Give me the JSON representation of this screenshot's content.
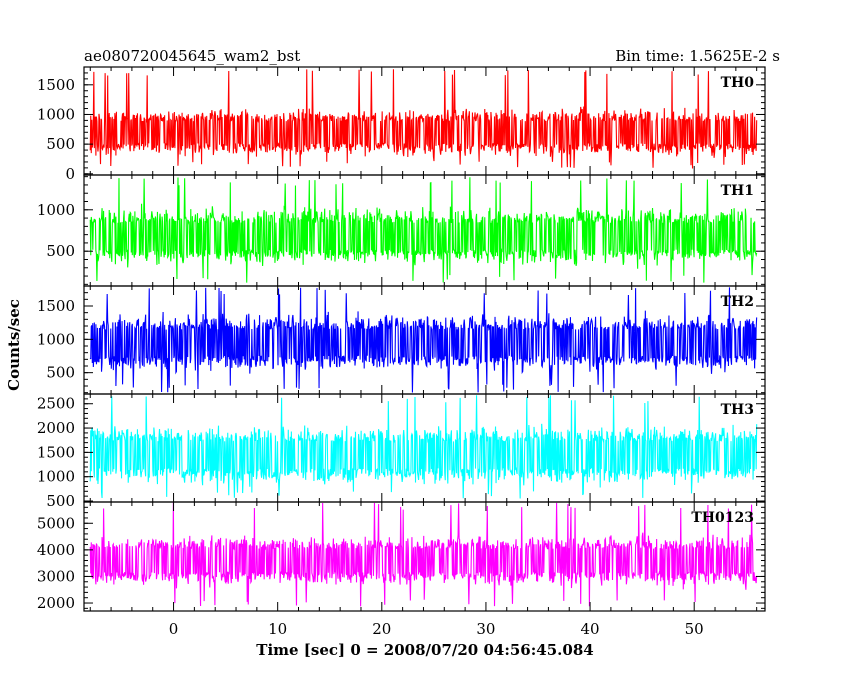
{
  "header": {
    "title": "ae080720045645_wam2_bst",
    "bin_time": "Bin time: 1.5625E-2 s"
  },
  "chart_data": {
    "type": "line",
    "title": "ae080720045645_wam2_bst",
    "xlabel": "Time [sec] 0 = 2008/07/20 04:56:45.084",
    "ylabel": "Counts/sec",
    "xlim": [
      -8.6,
      56.8
    ],
    "data_xrange": [
      -8.0,
      56.0
    ],
    "xticks": [
      0,
      10,
      20,
      30,
      40,
      50
    ],
    "xtick_labels": [
      "0",
      "10",
      "20",
      "30",
      "40",
      "50"
    ],
    "x_minor_step": 2,
    "grid": false,
    "legend": "none",
    "panels": [
      {
        "name": "TH0",
        "color": "#ff0000",
        "ylim": [
          -20,
          1800
        ],
        "yticks": [
          0,
          500,
          1000,
          1500
        ],
        "ytick_labels": [
          "0",
          "500",
          "1000",
          "1500"
        ],
        "y_minor_step": 100,
        "mean": 700,
        "band": [
          320,
          1150
        ],
        "range": [
          90,
          1780
        ]
      },
      {
        "name": "TH1",
        "color": "#00ff00",
        "ylim": [
          80,
          1420
        ],
        "yticks": [
          500,
          1000
        ],
        "ytick_labels": [
          "500",
          "1000"
        ],
        "y_minor_step": 100,
        "mean": 680,
        "band": [
          330,
          1050
        ],
        "range": [
          110,
          1400
        ]
      },
      {
        "name": "TH2",
        "color": "#0000ff",
        "ylim": [
          180,
          1800
        ],
        "yticks": [
          500,
          1000,
          1500
        ],
        "ytick_labels": [
          "500",
          "1000",
          "1500"
        ],
        "y_minor_step": 100,
        "mean": 950,
        "band": [
          530,
          1400
        ],
        "range": [
          200,
          1790
        ]
      },
      {
        "name": "TH3",
        "color": "#00ffff",
        "ylim": [
          480,
          2700
        ],
        "yticks": [
          500,
          1000,
          1500,
          2000,
          2500
        ],
        "ytick_labels": [
          "500",
          "1000",
          "1500",
          "2000",
          "2500"
        ],
        "y_minor_step": 100,
        "mean": 1450,
        "band": [
          920,
          2150
        ],
        "range": [
          520,
          2690
        ]
      },
      {
        "name": "TH0123",
        "color": "#ff00ff",
        "ylim": [
          1700,
          5800
        ],
        "yticks": [
          2000,
          3000,
          4000,
          5000
        ],
        "ytick_labels": [
          "2000",
          "3000",
          "4000",
          "5000"
        ],
        "y_minor_step": 200,
        "mean": 3600,
        "band": [
          2750,
          4700
        ],
        "range": [
          1850,
          5800
        ]
      }
    ]
  }
}
